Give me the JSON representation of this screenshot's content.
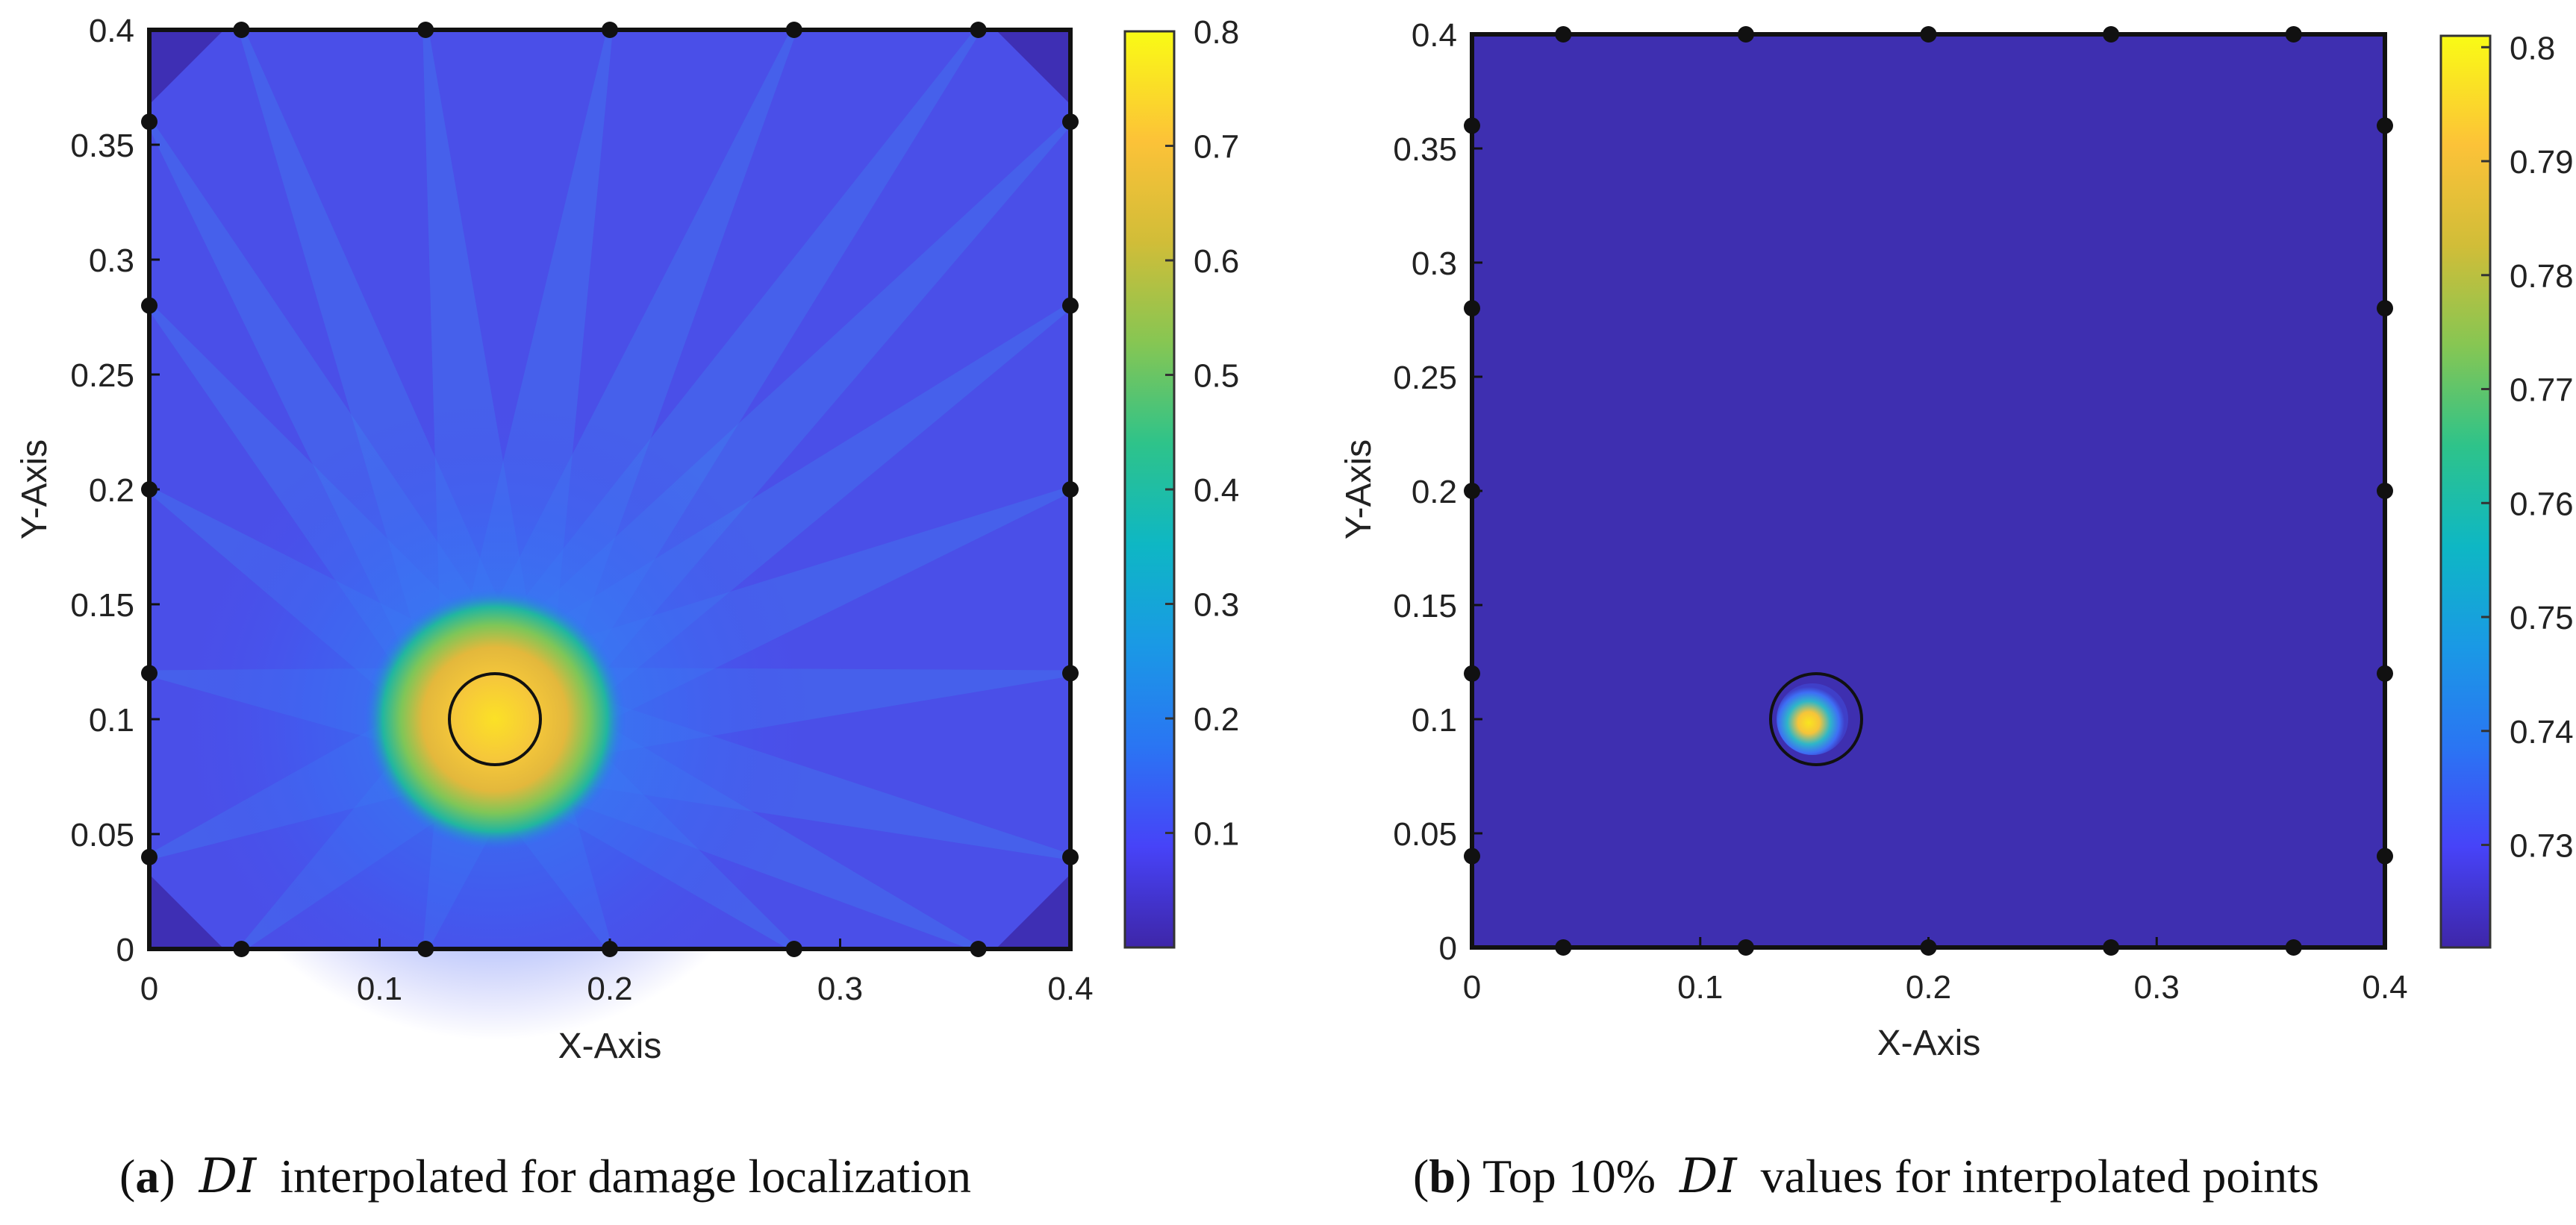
{
  "colormap": [
    "#3e26a8",
    "#4743f8",
    "#2a75f3",
    "#0ea6d9",
    "#0abb9c",
    "#53cc71",
    "#bcc03b",
    "#fcbc3c",
    "#f9dc24",
    "#f9fb15"
  ],
  "captions": {
    "a": {
      "label": "a",
      "open": "(",
      "close": ")",
      "symbol": "DI",
      "text": "interpolated for damage localization"
    },
    "b": {
      "label": "b",
      "open": "(",
      "close": ")",
      "pre": "Top 10%",
      "symbol": "DI",
      "text": "values for interpolated points"
    }
  },
  "chart_data": [
    {
      "type": "heatmap",
      "id": "a",
      "title": "",
      "xlabel": "X-Axis",
      "ylabel": "Y-Axis",
      "xlim": [
        0,
        0.4
      ],
      "ylim": [
        0,
        0.4
      ],
      "xticks": [
        "0",
        "0.1",
        "0.2",
        "0.3",
        "0.4"
      ],
      "yticks": [
        "0",
        "0.05",
        "0.1",
        "0.15",
        "0.2",
        "0.25",
        "0.3",
        "0.35",
        "0.4"
      ],
      "colorbar": {
        "min": 0,
        "max": 0.8,
        "ticks": [
          "0.1",
          "0.2",
          "0.3",
          "0.4",
          "0.5",
          "0.6",
          "0.7",
          "0.8"
        ]
      },
      "background_value": 0.05,
      "damage": {
        "x": 0.15,
        "y": 0.1,
        "radius": 0.02,
        "peak": 0.8
      },
      "sensors": [
        [
          0.04,
          0.4
        ],
        [
          0.12,
          0.4
        ],
        [
          0.2,
          0.4
        ],
        [
          0.28,
          0.4
        ],
        [
          0.36,
          0.4
        ],
        [
          0.4,
          0.36
        ],
        [
          0.4,
          0.28
        ],
        [
          0.4,
          0.2
        ],
        [
          0.4,
          0.12
        ],
        [
          0.4,
          0.04
        ],
        [
          0.36,
          0
        ],
        [
          0.28,
          0
        ],
        [
          0.2,
          0
        ],
        [
          0.12,
          0
        ],
        [
          0.04,
          0
        ],
        [
          0,
          0.04
        ],
        [
          0,
          0.12
        ],
        [
          0,
          0.2
        ],
        [
          0,
          0.28
        ],
        [
          0,
          0.36
        ]
      ]
    },
    {
      "type": "heatmap",
      "id": "b",
      "title": "",
      "xlabel": "X-Axis",
      "ylabel": "Y-Axis",
      "xlim": [
        0,
        0.4
      ],
      "ylim": [
        0,
        0.4
      ],
      "xticks": [
        "0",
        "0.1",
        "0.2",
        "0.3",
        "0.4"
      ],
      "yticks": [
        "0",
        "0.05",
        "0.1",
        "0.15",
        "0.2",
        "0.25",
        "0.3",
        "0.35",
        "0.4"
      ],
      "colorbar": {
        "min": 0.721,
        "max": 0.801,
        "ticks": [
          "0.73",
          "0.74",
          "0.75",
          "0.76",
          "0.77",
          "0.78",
          "0.79",
          "0.8"
        ]
      },
      "background_value": 0.721,
      "damage": {
        "x": 0.15,
        "y": 0.1,
        "radius": 0.02,
        "peak": 0.801
      },
      "sensors": [
        [
          0.04,
          0.4
        ],
        [
          0.12,
          0.4
        ],
        [
          0.2,
          0.4
        ],
        [
          0.28,
          0.4
        ],
        [
          0.36,
          0.4
        ],
        [
          0.4,
          0.36
        ],
        [
          0.4,
          0.28
        ],
        [
          0.4,
          0.2
        ],
        [
          0.4,
          0.12
        ],
        [
          0.4,
          0.04
        ],
        [
          0.36,
          0
        ],
        [
          0.28,
          0
        ],
        [
          0.2,
          0
        ],
        [
          0.12,
          0
        ],
        [
          0.04,
          0
        ],
        [
          0,
          0.04
        ],
        [
          0,
          0.12
        ],
        [
          0,
          0.2
        ],
        [
          0,
          0.28
        ],
        [
          0,
          0.36
        ]
      ]
    }
  ]
}
